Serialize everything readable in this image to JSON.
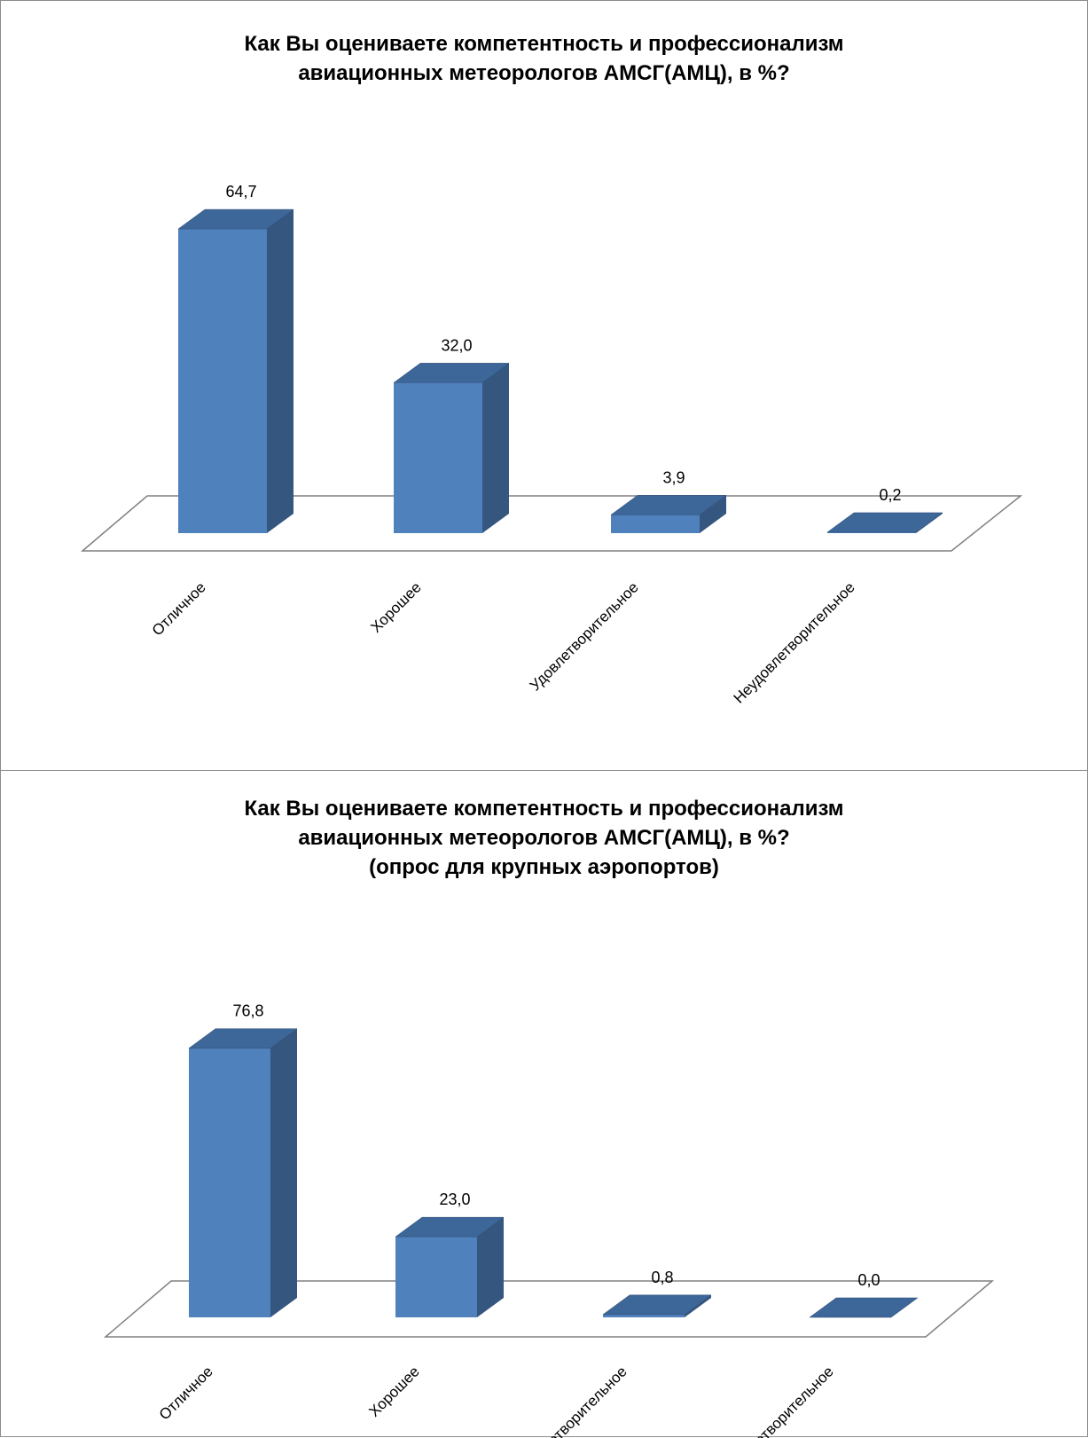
{
  "chart_data": [
    {
      "type": "bar",
      "title_lines": [
        "Как Вы оцениваете компетентность и профессионализм",
        "авиационных метеорологов АМСГ(АМЦ), в %?"
      ],
      "categories": [
        "Отличное",
        "Хорошее",
        "Удовлетворительное",
        "Неудовлетворительное"
      ],
      "values": [
        64.7,
        32.0,
        3.9,
        0.2
      ],
      "value_labels": [
        "64,7",
        "32,0",
        "3,9",
        "0,2"
      ],
      "ylim": [
        0,
        70
      ],
      "grid": false,
      "style": "3d-column"
    },
    {
      "type": "bar",
      "title_lines": [
        "Как Вы оцениваете компетентность и профессионализм",
        "авиационных метеорологов АМСГ(АМЦ), в %?",
        "(опрос для крупных аэропортов)"
      ],
      "categories": [
        "Отличное",
        "Хорошее",
        "Удовлетворительное",
        "Неудовлетворительное"
      ],
      "values": [
        76.8,
        23.0,
        0.8,
        0.0
      ],
      "value_labels": [
        "76,8",
        "23,0",
        "0,8",
        "0,0"
      ],
      "ylim": [
        0,
        80
      ],
      "grid": false,
      "style": "3d-column"
    }
  ],
  "colors": {
    "bar_front": "#4f81bd",
    "bar_side": "#34567f",
    "bar_top": "#3d6699",
    "floor_line": "#808080"
  }
}
